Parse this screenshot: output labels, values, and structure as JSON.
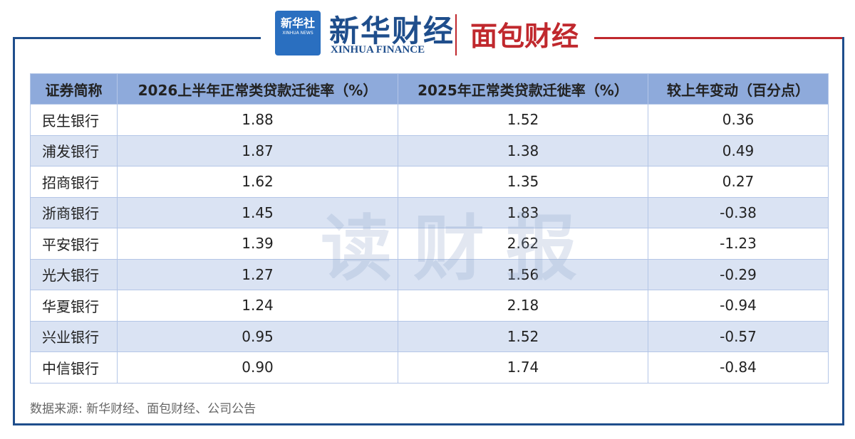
{
  "header": {
    "logo_mark": "新华社",
    "logo_mark_sub": "XINHUA NEWS",
    "brand": "新华财经",
    "brand_sub": "XINHUA FINANCE",
    "partner": "面包财经"
  },
  "table": {
    "columns": [
      "证券简称",
      "2026上半年正常类贷款迁徙率（%）",
      "2025年正常类贷款迁徙率（%）",
      "较上年变动（百分点）"
    ],
    "rows": [
      [
        "民生银行",
        "1.88",
        "1.52",
        "0.36"
      ],
      [
        "浦发银行",
        "1.87",
        "1.38",
        "0.49"
      ],
      [
        "招商银行",
        "1.62",
        "1.35",
        "0.27"
      ],
      [
        "浙商银行",
        "1.45",
        "1.83",
        "-0.38"
      ],
      [
        "平安银行",
        "1.39",
        "2.62",
        "-1.23"
      ],
      [
        "光大银行",
        "1.27",
        "1.56",
        "-0.29"
      ],
      [
        "华夏银行",
        "1.24",
        "2.18",
        "-0.94"
      ],
      [
        "兴业银行",
        "0.95",
        "1.52",
        "-0.57"
      ],
      [
        "中信银行",
        "0.90",
        "1.74",
        "-0.84"
      ]
    ]
  },
  "watermark": "读财报",
  "source": "数据来源: 新华财经、面包财经、公司公告"
}
